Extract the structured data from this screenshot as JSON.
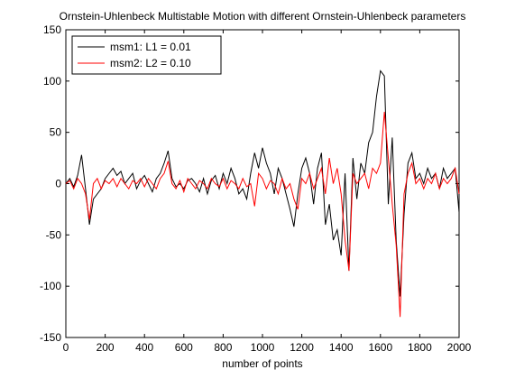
{
  "chart_data": {
    "type": "line",
    "title": "Ornstein-Uhlenbeck Multistable Motion with different Ornstein-Uhlenbeck parameters",
    "x_label": "number of points",
    "x": [
      0,
      20,
      40,
      60,
      80,
      100,
      120,
      140,
      160,
      180,
      200,
      220,
      240,
      260,
      280,
      300,
      320,
      340,
      360,
      380,
      400,
      420,
      440,
      460,
      480,
      500,
      520,
      540,
      560,
      580,
      600,
      620,
      640,
      660,
      680,
      700,
      720,
      740,
      760,
      780,
      800,
      820,
      840,
      860,
      880,
      900,
      920,
      940,
      960,
      980,
      1000,
      1020,
      1040,
      1060,
      1080,
      1100,
      1120,
      1140,
      1160,
      1180,
      1200,
      1220,
      1240,
      1260,
      1280,
      1300,
      1320,
      1340,
      1360,
      1380,
      1400,
      1420,
      1440,
      1460,
      1480,
      1500,
      1520,
      1540,
      1560,
      1580,
      1600,
      1620,
      1640,
      1660,
      1680,
      1700,
      1720,
      1740,
      1760,
      1780,
      1800,
      1820,
      1840,
      1860,
      1880,
      1900,
      1920,
      1940,
      1960,
      1980,
      2000
    ],
    "series": [
      {
        "name": "msm1: L1 = 0.01",
        "color": "#000000",
        "values": [
          0,
          5,
          -3,
          8,
          28,
          -5,
          -40,
          -15,
          -10,
          -5,
          5,
          10,
          15,
          8,
          12,
          0,
          5,
          10,
          -5,
          3,
          8,
          0,
          -8,
          5,
          10,
          20,
          32,
          5,
          -3,
          0,
          -5,
          3,
          5,
          0,
          -8,
          5,
          -10,
          3,
          8,
          -5,
          10,
          0,
          15,
          5,
          -10,
          -5,
          -15,
          10,
          30,
          15,
          35,
          20,
          10,
          -10,
          15,
          5,
          -10,
          -25,
          -42,
          -10,
          15,
          25,
          10,
          -20,
          15,
          30,
          -40,
          -20,
          -55,
          -45,
          -70,
          10,
          -85,
          25,
          -15,
          20,
          10,
          40,
          50,
          85,
          110,
          105,
          -20,
          45,
          -55,
          -110,
          -30,
          20,
          30,
          5,
          10,
          0,
          15,
          5,
          10,
          -5,
          15,
          5,
          10,
          15,
          -28
        ]
      },
      {
        "name": "msm2: L2 = 0.10",
        "color": "#ff0000",
        "values": [
          0,
          3,
          -5,
          5,
          0,
          -10,
          -35,
          0,
          5,
          -5,
          3,
          0,
          5,
          -3,
          5,
          0,
          -5,
          3,
          0,
          5,
          -3,
          5,
          0,
          -5,
          5,
          10,
          22,
          0,
          -5,
          3,
          -8,
          5,
          0,
          -5,
          3,
          0,
          -5,
          5,
          0,
          -3,
          5,
          -5,
          3,
          0,
          -5,
          5,
          -3,
          0,
          -22,
          10,
          5,
          -5,
          3,
          0,
          -10,
          5,
          -5,
          0,
          -15,
          -25,
          5,
          0,
          10,
          -5,
          5,
          15,
          -10,
          25,
          0,
          15,
          -10,
          -55,
          -85,
          10,
          0,
          5,
          10,
          -5,
          15,
          10,
          20,
          70,
          25,
          -20,
          -60,
          -130,
          -10,
          10,
          20,
          0,
          5,
          -5,
          5,
          0,
          10,
          -5,
          5,
          0,
          5,
          15,
          -10
        ]
      }
    ],
    "xlim": [
      0,
      2000
    ],
    "xticks": [
      0,
      200,
      400,
      600,
      800,
      1000,
      1200,
      1400,
      1600,
      1800,
      2000
    ],
    "ylim": [
      -150,
      150
    ],
    "yticks": [
      -150,
      -100,
      -50,
      0,
      50,
      100,
      150
    ],
    "grid": false,
    "legend": "upper-left"
  }
}
